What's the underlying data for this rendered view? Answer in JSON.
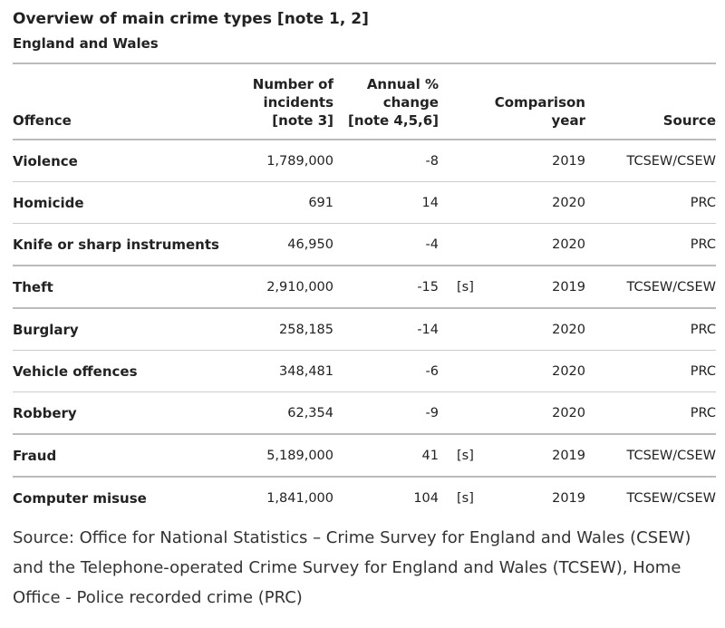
{
  "title": "Overview of main crime types [note 1, 2]",
  "subtitle": "England and Wales",
  "headers": {
    "offence": "Offence",
    "incidents_line1": "Number of",
    "incidents_line2": "incidents",
    "incidents_line3": "[note 3]",
    "change_line1": "Annual %",
    "change_line2": "change",
    "change_line3": "[note 4,5,6]",
    "year_line1": "Comparison",
    "year_line2": "year",
    "source": "Source"
  },
  "rows": [
    {
      "offence": "Violence",
      "incidents": "1,789,000",
      "change": "-8",
      "flag": "",
      "year": "2019",
      "source": "TCSEW/CSEW"
    },
    {
      "offence": "Homicide",
      "incidents": "691",
      "change": "14",
      "flag": "",
      "year": "2020",
      "source": "PRC"
    },
    {
      "offence": "Knife or sharp instruments",
      "incidents": "46,950",
      "change": "-4",
      "flag": "",
      "year": "2020",
      "source": "PRC"
    },
    {
      "offence": "Theft",
      "incidents": "2,910,000",
      "change": "-15",
      "flag": "[s]",
      "year": "2019",
      "source": "TCSEW/CSEW"
    },
    {
      "offence": "Burglary",
      "incidents": "258,185",
      "change": "-14",
      "flag": "",
      "year": "2020",
      "source": "PRC"
    },
    {
      "offence": "Vehicle offences",
      "incidents": "348,481",
      "change": "-6",
      "flag": "",
      "year": "2020",
      "source": "PRC"
    },
    {
      "offence": "Robbery",
      "incidents": "62,354",
      "change": "-9",
      "flag": "",
      "year": "2020",
      "source": "PRC"
    },
    {
      "offence": "Fraud",
      "incidents": "5,189,000",
      "change": "41",
      "flag": "[s]",
      "year": "2019",
      "source": "TCSEW/CSEW"
    },
    {
      "offence": "Computer misuse",
      "incidents": "1,841,000",
      "change": "104",
      "flag": "[s]",
      "year": "2019",
      "source": "TCSEW/CSEW"
    }
  ],
  "footer": "Source: Office for National Statistics – Crime Survey for England and Wales (CSEW) and the Telephone-operated Crime Survey for England and Wales (TCSEW), Home Office - Police recorded crime (PRC)"
}
